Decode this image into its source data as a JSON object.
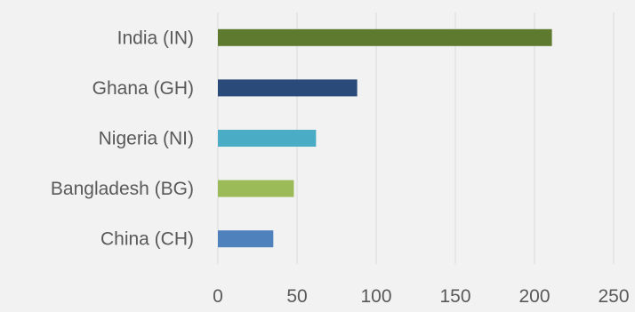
{
  "chart_data": {
    "type": "bar",
    "orientation": "horizontal",
    "title": "",
    "xlabel": "",
    "ylabel": "",
    "categories": [
      "India (IN)",
      "Ghana (GH)",
      "Nigeria (NI)",
      "Bangladesh (BG)",
      "China (CH)"
    ],
    "values": [
      211,
      88,
      62,
      48,
      35
    ],
    "colors": [
      "#5e7a2e",
      "#2a4a7a",
      "#4bacc6",
      "#9bbb59",
      "#4f81bd"
    ],
    "xlim": [
      0,
      250
    ],
    "xticks": [
      "0",
      "50",
      "100",
      "150",
      "200",
      "250"
    ],
    "grid": "vertical",
    "legend": "none"
  }
}
